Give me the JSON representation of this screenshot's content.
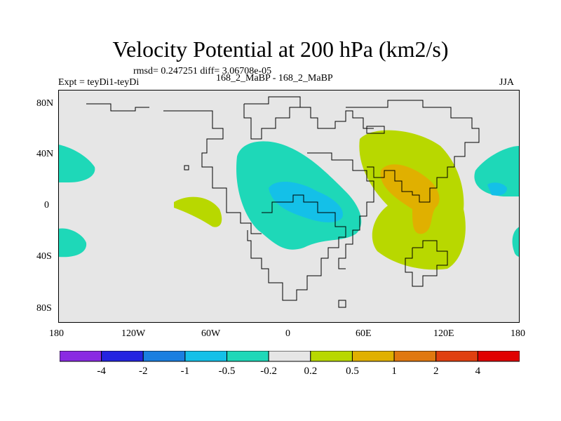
{
  "header": {
    "title": "Velocity Potential at 200 hPa (km2/s)",
    "stats": "rmsd= 0.247251 diff= 3.06708e-05",
    "expt": "Expt = teyDi1-teyDi",
    "case": "168_2_MaBP - 168_2_MaBP",
    "season": "JJA"
  },
  "axes": {
    "lat_ticks": [
      "80N",
      "40N",
      "0",
      "40S",
      "80S"
    ],
    "lon_ticks": [
      "180",
      "120W",
      "60W",
      "0",
      "60E",
      "120E",
      "180"
    ]
  },
  "colorbar": {
    "labels": [
      "-4",
      "-2",
      "-1",
      "-0.5",
      "-0.2",
      "0.2",
      "0.5",
      "1",
      "2",
      "4"
    ],
    "colors": [
      "#8a2be2",
      "#2424e0",
      "#1a7fe0",
      "#14c0e8",
      "#1ed8b8",
      "#e6e6e6",
      "#b8d800",
      "#e0b000",
      "#e07810",
      "#e04010",
      "#e00000"
    ]
  },
  "palette": {
    "background": "#e6e6e6",
    "neg_02": "#1ed8b8",
    "neg_05": "#14c0e8",
    "pos_02": "#b8d800",
    "pos_05": "#e0b000",
    "pos_1": "#e07810"
  }
}
